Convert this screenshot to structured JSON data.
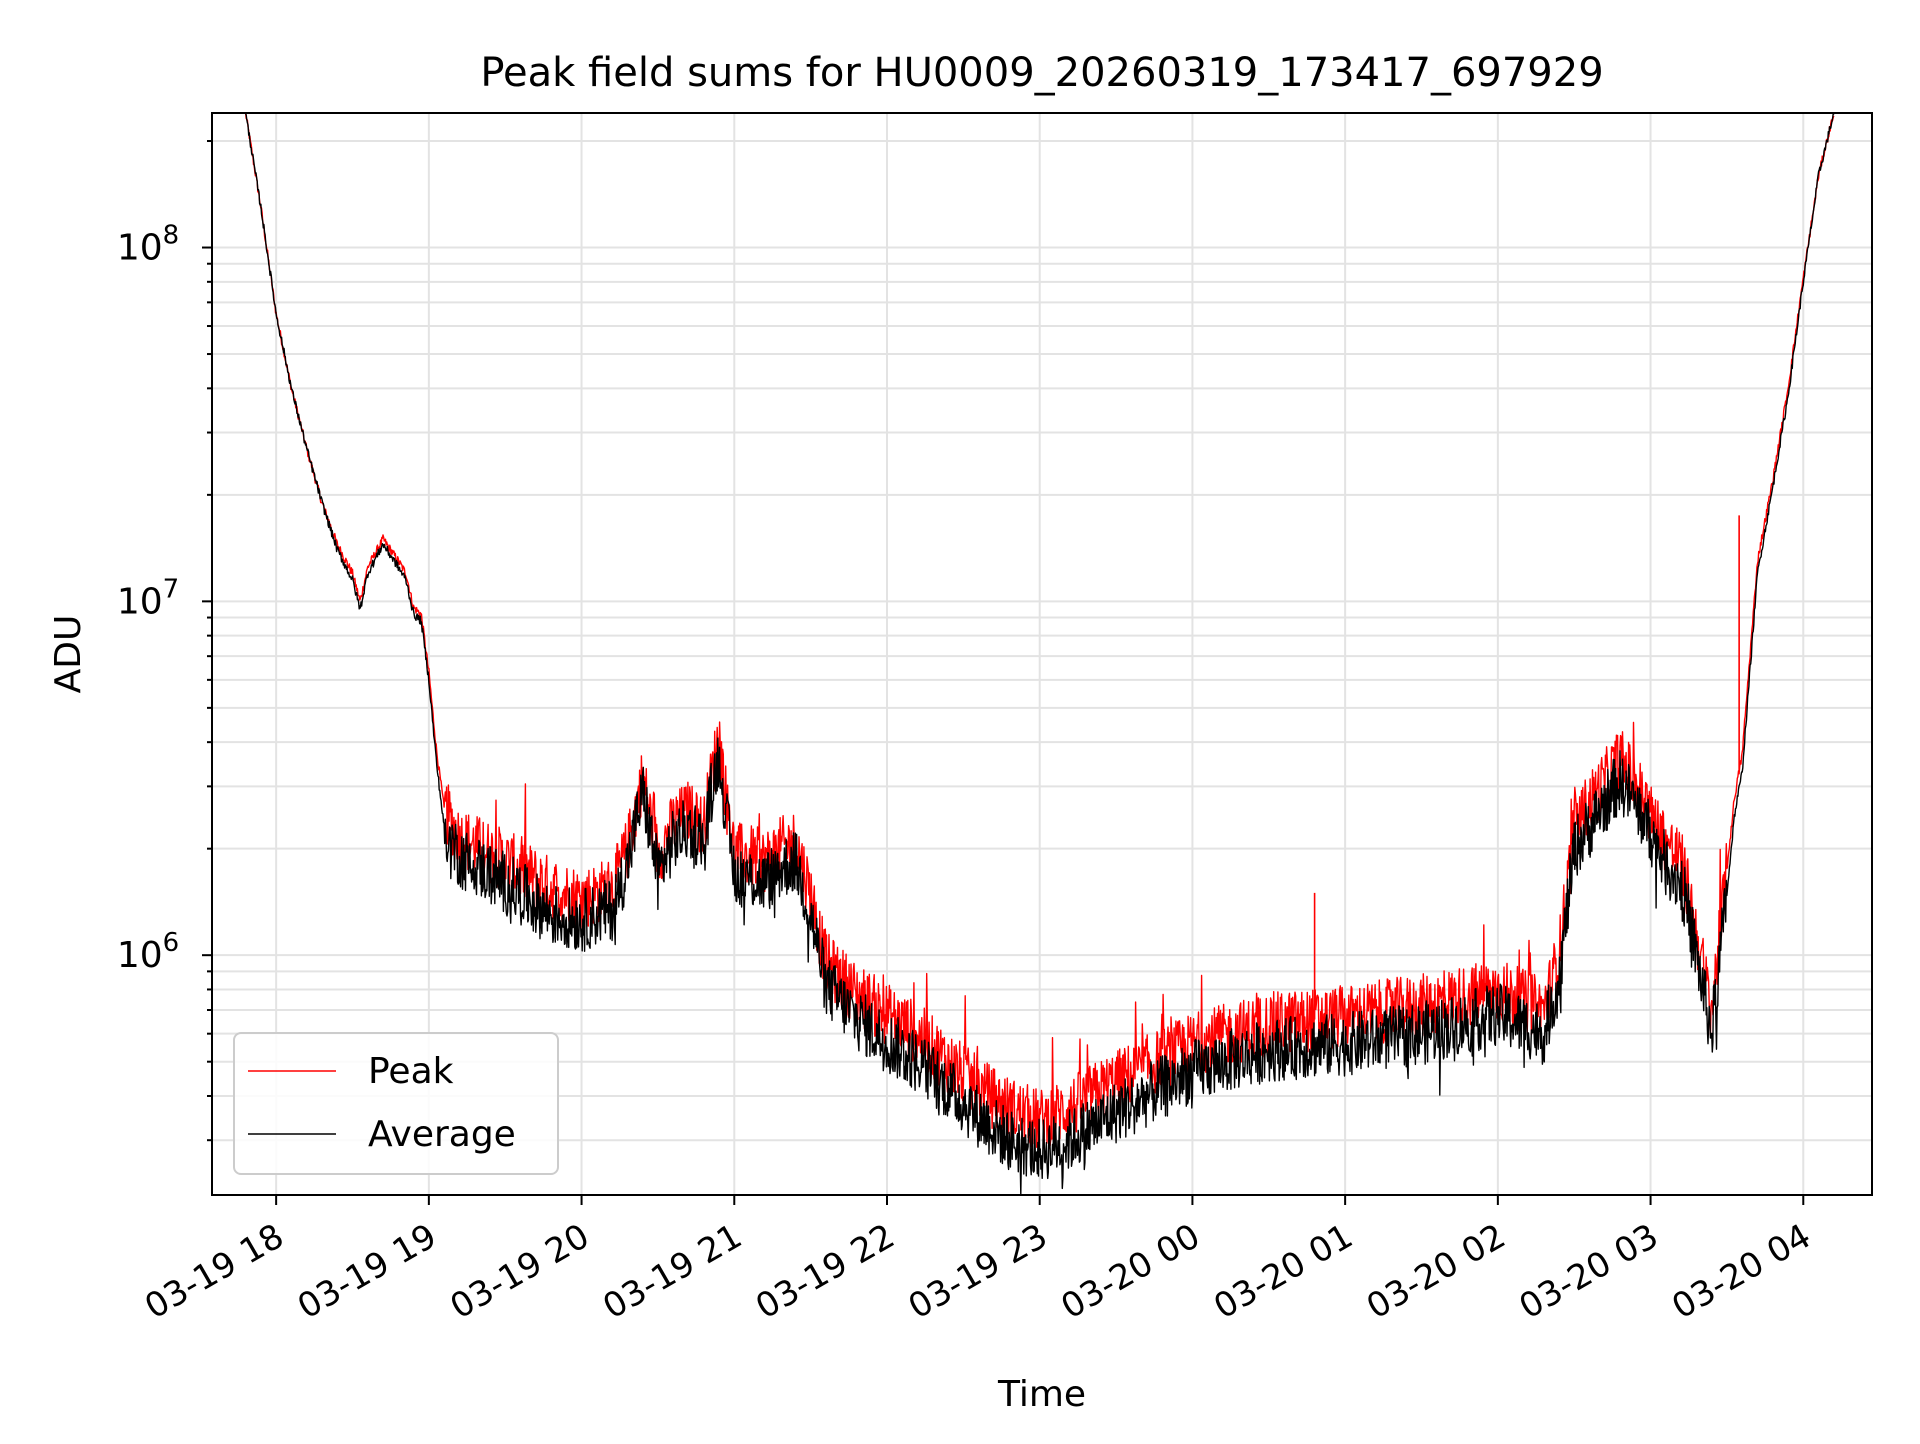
{
  "chart_data": {
    "type": "line",
    "title": "Peak field sums for HU0009_20260319_173417_697929",
    "xlabel": "Time",
    "ylabel": "ADU",
    "yscale": "log",
    "ylim": [
      210000,
      240000000
    ],
    "xlim_hours": [
      17.58,
      28.45
    ],
    "x_tick_labels": [
      "03-19 18",
      "03-19 19",
      "03-19 20",
      "03-19 21",
      "03-19 22",
      "03-19 23",
      "03-20 00",
      "03-20 01",
      "03-20 02",
      "03-20 03",
      "03-20 04"
    ],
    "x_tick_hours": [
      18,
      19,
      20,
      21,
      22,
      23,
      24,
      25,
      26,
      27,
      28
    ],
    "y_major_ticks": [
      {
        "value": 1000000,
        "base": "10",
        "exp": "6"
      },
      {
        "value": 10000000,
        "base": "10",
        "exp": "7"
      },
      {
        "value": 100000000,
        "base": "10",
        "exp": "8"
      }
    ],
    "grid": true,
    "legend_position": "lower-left",
    "legend": [
      {
        "label": "Peak",
        "color": "#ff0000"
      },
      {
        "label": "Average",
        "color": "#000000"
      }
    ],
    "series": [
      {
        "name": "Average",
        "color": "#000000",
        "x_hours": [
          17.8,
          17.9,
          18.0,
          18.1,
          18.2,
          18.3,
          18.4,
          18.5,
          18.55,
          18.6,
          18.7,
          18.8,
          18.85,
          18.9,
          18.95,
          19.0,
          19.05,
          19.1,
          19.2,
          19.4,
          19.6,
          19.8,
          20.0,
          20.2,
          20.3,
          20.4,
          20.5,
          20.6,
          20.7,
          20.8,
          20.85,
          20.9,
          20.95,
          21.0,
          21.1,
          21.2,
          21.3,
          21.4,
          21.5,
          21.6,
          21.8,
          22.0,
          22.2,
          22.4,
          22.6,
          22.8,
          23.0,
          23.2,
          23.5,
          24.0,
          24.5,
          25.0,
          25.5,
          26.0,
          26.3,
          26.4,
          26.5,
          26.6,
          26.7,
          26.8,
          26.9,
          27.0,
          27.1,
          27.2,
          27.25,
          27.3,
          27.4,
          27.5,
          27.55,
          27.6,
          27.7,
          27.8,
          27.9,
          28.0,
          28.1,
          28.2
        ],
        "values": [
          240000000,
          130000000,
          65000000,
          40000000,
          27000000,
          19000000,
          14000000,
          11500000,
          9500000,
          12000000,
          14500000,
          12500000,
          11500000,
          9200000,
          8800000,
          6000000,
          3500000,
          2300000,
          1900000,
          1700000,
          1500000,
          1300000,
          1250000,
          1350000,
          1800000,
          2900000,
          1700000,
          2100000,
          2300000,
          2100000,
          2900000,
          3700000,
          2400000,
          1700000,
          1650000,
          1600000,
          1750000,
          1850000,
          1300000,
          820000,
          660000,
          570000,
          500000,
          420000,
          350000,
          300000,
          280000,
          300000,
          360000,
          470000,
          540000,
          560000,
          600000,
          680000,
          600000,
          850000,
          2000000,
          2300000,
          2700000,
          3100000,
          2700000,
          2200000,
          1800000,
          1600000,
          1300000,
          1000000,
          600000,
          1500000,
          2500000,
          3300000,
          12000000,
          21000000,
          38000000,
          80000000,
          160000000,
          240000000
        ]
      },
      {
        "name": "Peak",
        "color": "#ff0000",
        "x_hours": [
          17.8,
          17.9,
          18.0,
          18.1,
          18.2,
          18.3,
          18.4,
          18.5,
          18.55,
          18.6,
          18.7,
          18.8,
          18.85,
          18.9,
          18.95,
          19.0,
          19.05,
          19.1,
          19.2,
          19.4,
          19.6,
          19.8,
          20.0,
          20.2,
          20.3,
          20.4,
          20.5,
          20.6,
          20.7,
          20.8,
          20.85,
          20.9,
          20.95,
          21.0,
          21.1,
          21.2,
          21.3,
          21.4,
          21.5,
          21.6,
          21.8,
          22.0,
          22.2,
          22.4,
          22.6,
          22.8,
          23.0,
          23.2,
          23.5,
          24.0,
          24.5,
          25.0,
          25.5,
          26.0,
          26.3,
          26.4,
          26.5,
          26.6,
          26.7,
          26.8,
          26.9,
          27.0,
          27.1,
          27.2,
          27.25,
          27.3,
          27.4,
          27.5,
          27.55,
          27.6,
          27.7,
          27.8,
          27.9,
          28.0,
          28.1,
          28.2
        ],
        "values": [
          240000000,
          130000000,
          65000000,
          40000000,
          27000000,
          19000000,
          14500000,
          12000000,
          10000000,
          12500000,
          15000000,
          13000000,
          12000000,
          9600000,
          9200000,
          6300000,
          3800000,
          2600000,
          2150000,
          1950000,
          1750000,
          1550000,
          1450000,
          1550000,
          2000000,
          3200000,
          1900000,
          2350000,
          2550000,
          2300000,
          3200000,
          4200000,
          2700000,
          1950000,
          1900000,
          1850000,
          2000000,
          2100000,
          1500000,
          950000,
          780000,
          680000,
          600000,
          500000,
          420000,
          370000,
          340000,
          370000,
          440000,
          560000,
          640000,
          670000,
          720000,
          800000,
          700000,
          1000000,
          2300000,
          2700000,
          3100000,
          3600000,
          3100000,
          2500000,
          2100000,
          1850000,
          1500000,
          1150000,
          700000,
          1750000,
          2800000,
          3700000,
          13000000,
          22000000,
          40000000,
          82000000,
          160000000,
          240000000
        ]
      }
    ],
    "spikes": [
      {
        "series": "Peak",
        "x_hour": 24.8,
        "value": 1500000
      },
      {
        "series": "Peak",
        "x_hour": 27.58,
        "value": 17500000
      }
    ]
  }
}
